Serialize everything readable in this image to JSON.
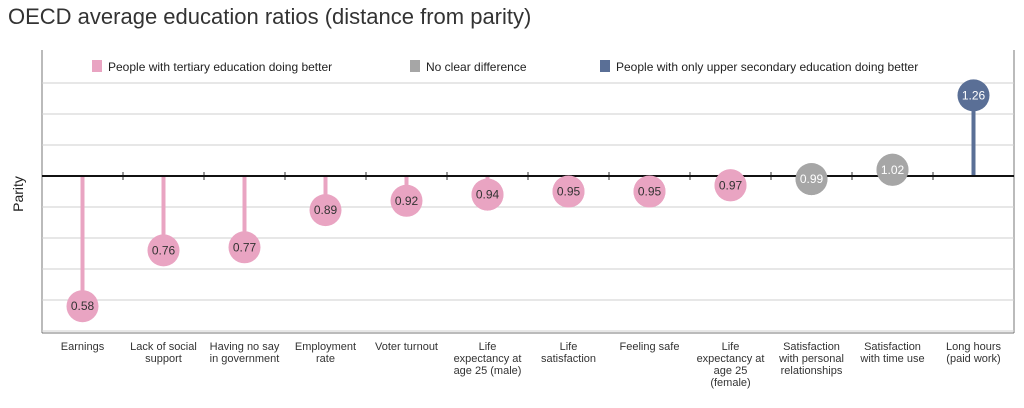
{
  "chart_data": {
    "type": "lollipop",
    "title": "OECD average education ratios (distance from parity)",
    "ylabel": "Parity",
    "xlabel": "",
    "baseline": 1.0,
    "ylim": [
      0.5,
      1.3
    ],
    "colors": {
      "tertiary": "#e9a4c2",
      "nodiff": "#a6a6a6",
      "upper_secondary": "#5a6f96"
    },
    "legend": [
      {
        "label": "People with tertiary education doing better",
        "group": "tertiary"
      },
      {
        "label": "No clear difference",
        "group": "nodiff"
      },
      {
        "label": "People with only upper secondary education doing better",
        "group": "upper_secondary"
      }
    ],
    "points": [
      {
        "category": [
          "Earnings"
        ],
        "value": 0.58,
        "label": "0.58",
        "group": "tertiary"
      },
      {
        "category": [
          "Lack of social",
          "support"
        ],
        "value": 0.76,
        "label": "0.76",
        "group": "tertiary"
      },
      {
        "category": [
          "Having no say",
          "in government"
        ],
        "value": 0.77,
        "label": "0.77",
        "group": "tertiary"
      },
      {
        "category": [
          "Employment",
          "rate"
        ],
        "value": 0.89,
        "label": "0.89",
        "group": "tertiary"
      },
      {
        "category": [
          "Voter turnout"
        ],
        "value": 0.92,
        "label": "0.92",
        "group": "tertiary"
      },
      {
        "category": [
          "Life",
          "expectancy at",
          "age 25 (male)"
        ],
        "value": 0.94,
        "label": "0.94",
        "group": "tertiary"
      },
      {
        "category": [
          "Life",
          "satisfaction"
        ],
        "value": 0.95,
        "label": "0.95",
        "group": "tertiary"
      },
      {
        "category": [
          "Feeling safe"
        ],
        "value": 0.95,
        "label": "0.95",
        "group": "tertiary"
      },
      {
        "category": [
          "Life",
          "expectancy at",
          "age 25",
          "(female)"
        ],
        "value": 0.97,
        "label": "0.97",
        "group": "tertiary"
      },
      {
        "category": [
          "Satisfaction",
          "with personal",
          "relationships"
        ],
        "value": 0.99,
        "label": "0.99",
        "group": "nodiff"
      },
      {
        "category": [
          "Satisfaction",
          "with time use"
        ],
        "value": 1.02,
        "label": "1.02",
        "group": "nodiff"
      },
      {
        "category": [
          "Long hours",
          "(paid work)"
        ],
        "value": 1.26,
        "label": "1.26",
        "group": "upper_secondary"
      }
    ]
  }
}
